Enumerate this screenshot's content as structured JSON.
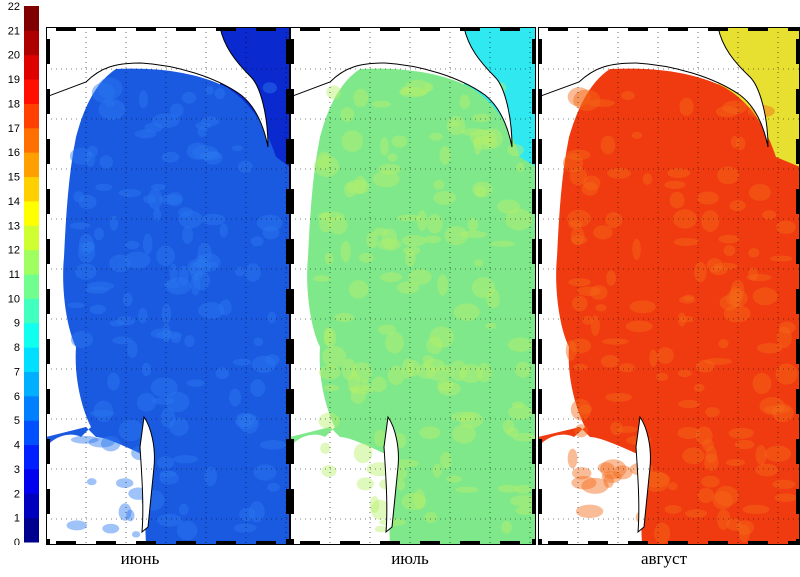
{
  "colorbar": {
    "ticks": [
      "0",
      "1",
      "2",
      "3",
      "4",
      "5",
      "6",
      "7",
      "8",
      "9",
      "10",
      "11",
      "12",
      "13",
      "14",
      "15",
      "16",
      "17",
      "18",
      "19",
      "20",
      "21",
      "22"
    ],
    "min": 0,
    "max": 22,
    "colors": [
      "#00008f",
      "#0000bf",
      "#0000ef",
      "#0020ff",
      "#0050ff",
      "#0080ff",
      "#00afff",
      "#00dfff",
      "#10ffef",
      "#40ffbf",
      "#70ff8f",
      "#9fff60",
      "#cfff30",
      "#ffff00",
      "#ffd000",
      "#ffa000",
      "#ff7000",
      "#ff4000",
      "#ff1000",
      "#df0000",
      "#af0000",
      "#800000"
    ]
  },
  "panels": [
    {
      "label": "июнь",
      "sea_color": "#1a5ae0",
      "speckle": "#2a78f0",
      "east_color": "#0a2ad0"
    },
    {
      "label": "июль",
      "sea_color": "#7fe88a",
      "speckle": "#b7f06a",
      "east_color": "#30e8f0"
    },
    {
      "label": "август",
      "sea_color": "#f03a10",
      "speckle": "#f56a18",
      "east_color": "#e8e030"
    }
  ]
}
